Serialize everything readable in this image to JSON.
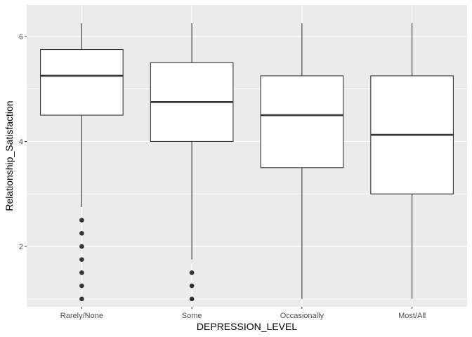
{
  "chart_data": {
    "type": "boxplot",
    "xlabel": "DEPRESSION_LEVEL",
    "ylabel": "Relationship_Satisfaction",
    "categories": [
      "Rarely/None",
      "Some",
      "Occasionally",
      "Most/All"
    ],
    "boxes": [
      {
        "category": "Rarely/None",
        "whisker_low": 2.75,
        "q1": 4.5,
        "median": 5.25,
        "q3": 5.75,
        "whisker_high": 6.25,
        "outliers": [
          2.5,
          2.25,
          2.0,
          1.75,
          1.5,
          1.25,
          1.0
        ]
      },
      {
        "category": "Some",
        "whisker_low": 1.75,
        "q1": 4.0,
        "median": 4.75,
        "q3": 5.5,
        "whisker_high": 6.25,
        "outliers": [
          1.5,
          1.25,
          1.0
        ]
      },
      {
        "category": "Occasionally",
        "whisker_low": 1.0,
        "q1": 3.5,
        "median": 4.5,
        "q3": 5.25,
        "whisker_high": 6.25,
        "outliers": []
      },
      {
        "category": "Most/All",
        "whisker_low": 1.0,
        "q1": 3.0,
        "median": 4.125,
        "q3": 5.25,
        "whisker_high": 6.25,
        "outliers": []
      }
    ],
    "ylim": [
      0.85,
      6.6
    ],
    "yticks": [
      2,
      4,
      6
    ],
    "grid": true,
    "colors": {
      "panel": "#ebebeb",
      "grid": "#ffffff",
      "box_fill": "#ffffff",
      "box_line": "#333333",
      "point": "#333333"
    }
  }
}
